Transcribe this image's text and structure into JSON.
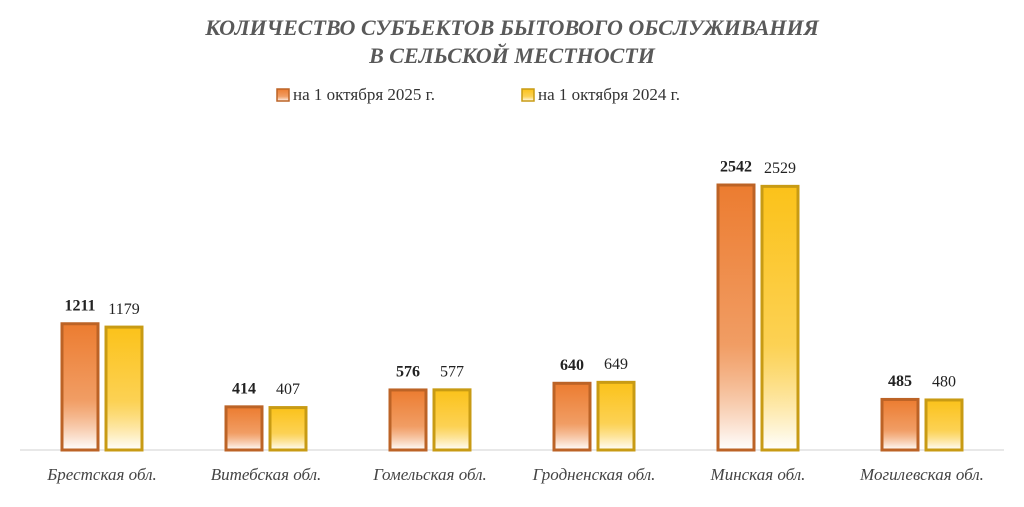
{
  "chart_data": {
    "type": "bar",
    "title": [
      "КОЛИЧЕСТВО СУБЪЕКТОВ БЫТОВОГО ОБСЛУЖИВАНИЯ",
      "В СЕЛЬСКОЙ МЕСТНОСТИ"
    ],
    "categories": [
      "Брестская обл.",
      "Витебская обл.",
      "Гомельская обл.",
      "Гродненская обл.",
      "Минская обл.",
      "Могилевская обл."
    ],
    "series": [
      {
        "name": "на 1 октября 2025 г.",
        "color": "#ec7c30",
        "values": [
          1211,
          414,
          576,
          640,
          2542,
          485
        ]
      },
      {
        "name": "на 1 октября 2024 г.",
        "color": "#fbc21a",
        "values": [
          1179,
          407,
          577,
          649,
          2529,
          480
        ]
      }
    ]
  }
}
